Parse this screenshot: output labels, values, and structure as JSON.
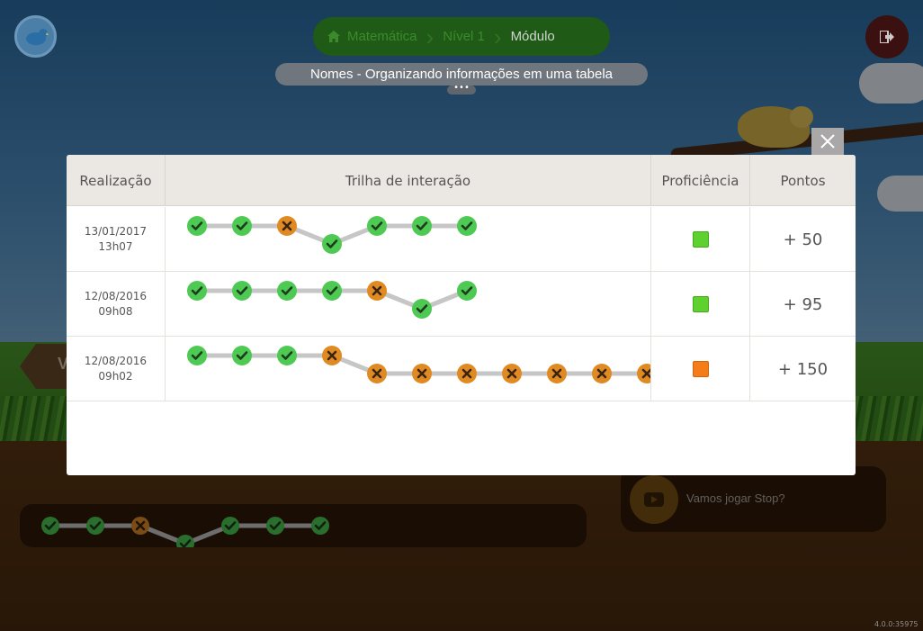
{
  "breadcrumb": {
    "items": [
      "Matemática",
      "Nível 1"
    ],
    "current": "Módulo"
  },
  "module_title": "Nomes - Organizando informações em uma tabela",
  "more_dots": "•••",
  "signpost_letter": "V",
  "video": {
    "label": "Vamos jogar Stop?"
  },
  "version": "4.0.0:35975",
  "colors": {
    "correct": "#4ec954",
    "wrong": "#e08a24",
    "prof_green": "#5fd12f",
    "prof_orange": "#f47d1a"
  },
  "background_trail": [
    "correct",
    "correct",
    "wrong",
    "correct",
    "correct",
    "correct",
    "correct"
  ],
  "table": {
    "headers": {
      "realizacao": "Realização",
      "trilha": "Trilha de interação",
      "proficiencia": "Proficiência",
      "pontos": "Pontos"
    },
    "rows": [
      {
        "date": "13/01/2017",
        "time": "13h07",
        "trail": [
          "correct",
          "correct",
          "wrong",
          "correct",
          "correct",
          "correct",
          "correct"
        ],
        "proficiency": "green",
        "points": "+ 50"
      },
      {
        "date": "12/08/2016",
        "time": "09h08",
        "trail": [
          "correct",
          "correct",
          "correct",
          "correct",
          "wrong",
          "correct",
          "correct"
        ],
        "proficiency": "green",
        "points": "+ 95"
      },
      {
        "date": "12/08/2016",
        "time": "09h02",
        "trail": [
          "correct",
          "correct",
          "correct",
          "wrong",
          "wrong",
          "wrong",
          "wrong",
          "wrong",
          "wrong",
          "wrong",
          "wrong"
        ],
        "proficiency": "orange",
        "points": "+ 150"
      }
    ]
  }
}
